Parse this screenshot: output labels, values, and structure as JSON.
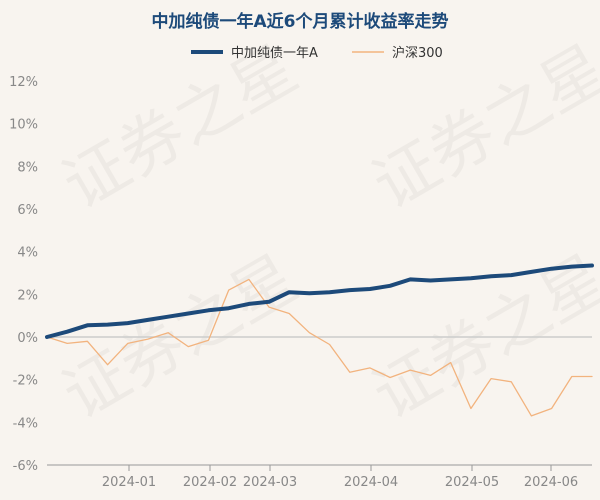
{
  "chart_data": {
    "type": "line",
    "title": "中加纯债一年A近6个月累计收益率走势",
    "yticks": [
      "12%",
      "10%",
      "8%",
      "6%",
      "4%",
      "2%",
      "0%",
      "-2%",
      "-4%",
      "-6%"
    ],
    "ylim": [
      -6,
      12
    ],
    "xticks": [
      "2024-01",
      "2024-02",
      "2024-03",
      "2024-04",
      "2024-05",
      "2024-06"
    ],
    "legend_position": "top",
    "watermark": "证券之星",
    "series": [
      {
        "name": "中加纯债一年A",
        "color": "#1d4a7a",
        "values": [
          0.0,
          0.25,
          0.55,
          0.58,
          0.65,
          0.8,
          0.95,
          1.1,
          1.25,
          1.35,
          1.55,
          1.65,
          2.1,
          2.05,
          2.1,
          2.2,
          2.25,
          2.4,
          2.7,
          2.65,
          2.7,
          2.75,
          2.85,
          2.9,
          3.05,
          3.2,
          3.3,
          3.35
        ]
      },
      {
        "name": "沪深300",
        "color": "#f2b37e",
        "values": [
          0.0,
          -0.3,
          -0.2,
          -1.3,
          -0.3,
          -0.1,
          0.2,
          -0.45,
          -0.15,
          2.2,
          2.7,
          1.4,
          1.1,
          0.2,
          -0.35,
          -1.65,
          -1.45,
          -1.9,
          -1.55,
          -1.8,
          -1.2,
          -3.35,
          -1.95,
          -2.1,
          -3.7,
          -3.35,
          -1.85,
          -1.85
        ]
      }
    ]
  }
}
